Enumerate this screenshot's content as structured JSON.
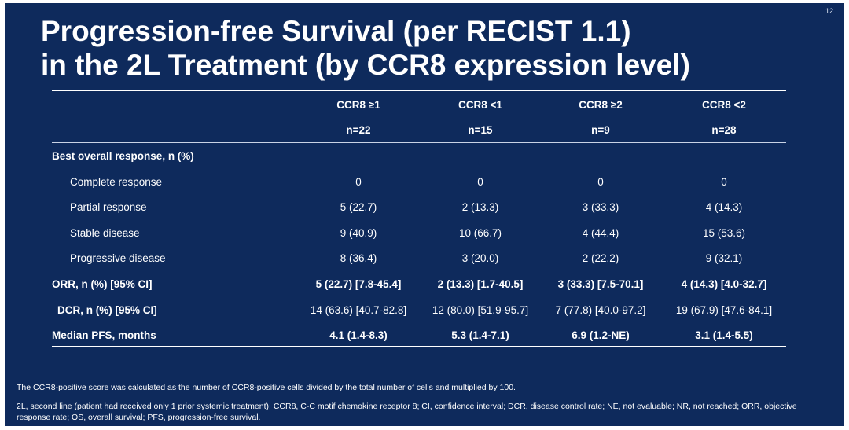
{
  "slide": {
    "page_number": "12",
    "title_line1": "Progression-free Survival (per RECIST 1.1)",
    "title_line2": "in the 2L Treatment (by CCR8 expression level)"
  },
  "table": {
    "columns": [
      {
        "label": "CCR8 ≥1",
        "n": "n=22"
      },
      {
        "label": "CCR8 <1",
        "n": "n=15"
      },
      {
        "label": "CCR8 ≥2",
        "n": "n=9"
      },
      {
        "label": "CCR8 <2",
        "n": "n=28"
      }
    ],
    "section_heading": "Best overall response, n (%)",
    "rows": [
      {
        "label": "Complete response",
        "values": [
          "0",
          "0",
          "0",
          "0"
        ]
      },
      {
        "label": "Partial response",
        "values": [
          "5 (22.7)",
          "2 (13.3)",
          "3 (33.3)",
          "4 (14.3)"
        ]
      },
      {
        "label": "Stable disease",
        "values": [
          "9 (40.9)",
          "10 (66.7)",
          "4 (44.4)",
          "15 (53.6)"
        ]
      },
      {
        "label": "Progressive disease",
        "values": [
          "8 (36.4)",
          "3 (20.0)",
          "2 (22.2)",
          "9 (32.1)"
        ]
      },
      {
        "label": "ORR, n (%) [95% CI]",
        "values": [
          "5 (22.7) [7.8-45.4]",
          "2 (13.3) [1.7-40.5]",
          "3 (33.3) [7.5-70.1]",
          "4 (14.3) [4.0-32.7]"
        ]
      },
      {
        "label": "DCR, n (%) [95% CI]",
        "values": [
          "14 (63.6) [40.7-82.8]",
          "12 (80.0) [51.9-95.7]",
          "7 (77.8) [40.0-97.2]",
          "19 (67.9) [47.6-84.1]"
        ]
      },
      {
        "label": "Median PFS, months",
        "values": [
          "4.1 (1.4-8.3)",
          "5.3 (1.4-7.1)",
          "6.9 (1.2-NE)",
          "3.1 (1.4-5.5)"
        ]
      }
    ]
  },
  "footnotes": {
    "score_note": "The CCR8-positive score was calculated as the number of CCR8-positive cells divided by the total number of cells and multiplied by 100.",
    "abbreviations": "2L, second line (patient had received only 1 prior systemic treatment); CCR8, C-C motif chemokine receptor 8; CI, confidence interval; DCR, disease control rate; NE, not evaluable; NR, not reached; ORR, objective response rate; OS, overall survival; PFS, progression-free survival."
  }
}
